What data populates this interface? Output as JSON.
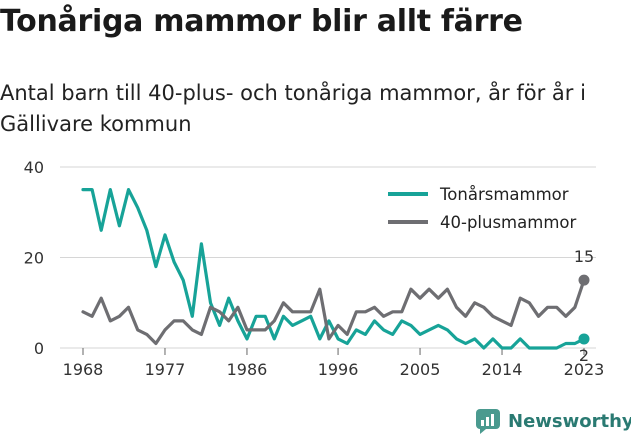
{
  "header": {
    "title": "Tonåriga mammor blir allt färre",
    "subtitle": "Antal barn till 40-plus- och tonåriga mammor, år för år i Gällivare kommun"
  },
  "brand": {
    "name": "Newsworthy",
    "icon": "newsworthy-logo-icon",
    "color": "#4a9a8f"
  },
  "chart_data": {
    "type": "line",
    "title": "Tonåriga mammor blir allt färre",
    "subtitle": "Antal barn till 40-plus- och tonåriga mammor, år för år i Gällivare kommun",
    "xlabel": "",
    "ylabel": "",
    "xlim": [
      1968,
      2023
    ],
    "ylim": [
      0,
      40
    ],
    "yticks": [
      0,
      20,
      40
    ],
    "xticks": [
      1968,
      1977,
      1986,
      1996,
      2005,
      2014,
      2023
    ],
    "grid": "horizontal",
    "legend": "top-right",
    "x": [
      1968,
      1969,
      1970,
      1971,
      1972,
      1973,
      1974,
      1975,
      1976,
      1977,
      1978,
      1979,
      1980,
      1981,
      1982,
      1983,
      1984,
      1985,
      1986,
      1987,
      1988,
      1989,
      1990,
      1991,
      1992,
      1993,
      1994,
      1995,
      1996,
      1997,
      1998,
      1999,
      2000,
      2001,
      2002,
      2003,
      2004,
      2005,
      2006,
      2007,
      2008,
      2009,
      2010,
      2011,
      2012,
      2013,
      2014,
      2015,
      2016,
      2017,
      2018,
      2019,
      2020,
      2021,
      2022,
      2023
    ],
    "series": [
      {
        "name": "Tonårsmammor",
        "color": "#17a398",
        "values": [
          35,
          35,
          26,
          35,
          27,
          35,
          31,
          26,
          18,
          25,
          19,
          15,
          7,
          23,
          10,
          5,
          11,
          6,
          2,
          7,
          7,
          2,
          7,
          5,
          6,
          7,
          2,
          6,
          2,
          1,
          4,
          3,
          6,
          4,
          3,
          6,
          5,
          3,
          4,
          5,
          4,
          2,
          1,
          2,
          0,
          2,
          0,
          0,
          2,
          0,
          0,
          0,
          0,
          1,
          1,
          2
        ],
        "end_label": "2"
      },
      {
        "name": "40-plusmammor",
        "color": "#6e6e72",
        "values": [
          8,
          7,
          11,
          6,
          7,
          9,
          4,
          3,
          1,
          4,
          6,
          6,
          4,
          3,
          9,
          8,
          6,
          9,
          4,
          4,
          4,
          6,
          10,
          8,
          8,
          8,
          13,
          2,
          5,
          3,
          8,
          8,
          9,
          7,
          8,
          8,
          13,
          11,
          13,
          11,
          13,
          9,
          7,
          10,
          9,
          7,
          6,
          5,
          11,
          10,
          7,
          9,
          9,
          7,
          9,
          15
        ],
        "end_label": "15"
      }
    ]
  }
}
